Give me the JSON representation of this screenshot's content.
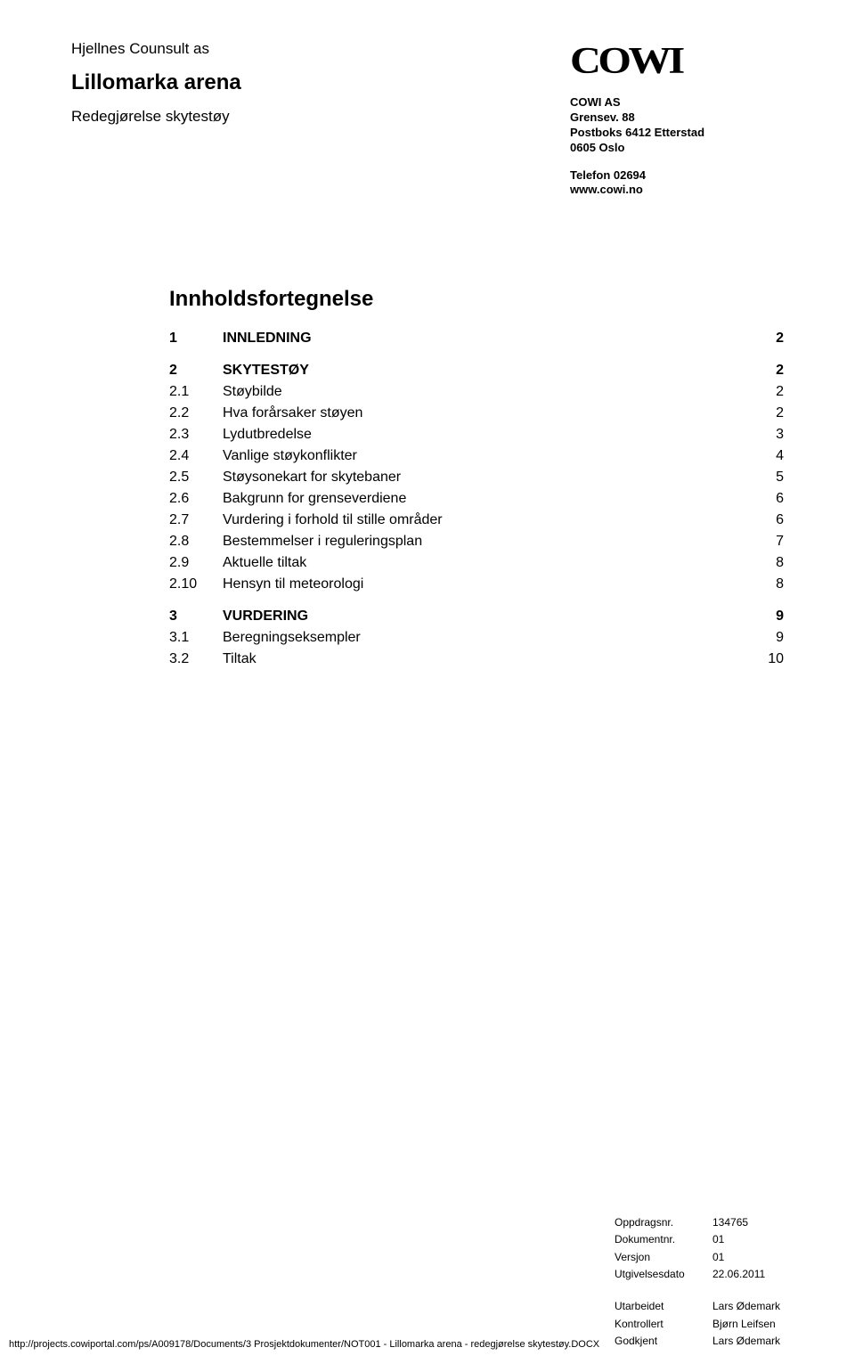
{
  "header": {
    "company": "Hjellnes Counsult as",
    "project": "Lillomarka arena",
    "subtitle": "Redegjørelse skytestøy"
  },
  "logo": {
    "text": "COWI"
  },
  "address": {
    "name": "COWI AS",
    "street": "Grensev. 88",
    "postbox": "Postboks 6412 Etterstad",
    "city": "0605  Oslo",
    "phone": "Telefon 02694",
    "web": "www.cowi.no"
  },
  "toc": {
    "title": "Innholdsfortegnelse",
    "groups": [
      {
        "rows": [
          {
            "num": "1",
            "label": "INNLEDNING",
            "page": "2",
            "bold": true
          }
        ]
      },
      {
        "rows": [
          {
            "num": "2",
            "label": "SKYTESTØY",
            "page": "2",
            "bold": true
          },
          {
            "num": "2.1",
            "label": "Støybilde",
            "page": "2",
            "bold": false
          },
          {
            "num": "2.2",
            "label": "Hva forårsaker støyen",
            "page": "2",
            "bold": false
          },
          {
            "num": "2.3",
            "label": "Lydutbredelse",
            "page": "3",
            "bold": false
          },
          {
            "num": "2.4",
            "label": "Vanlige støykonflikter",
            "page": "4",
            "bold": false
          },
          {
            "num": "2.5",
            "label": "Støysonekart for skytebaner",
            "page": "5",
            "bold": false
          },
          {
            "num": "2.6",
            "label": "Bakgrunn for grenseverdiene",
            "page": "6",
            "bold": false
          },
          {
            "num": "2.7",
            "label": "Vurdering i forhold til stille områder",
            "page": "6",
            "bold": false
          },
          {
            "num": "2.8",
            "label": "Bestemmelser i reguleringsplan",
            "page": "7",
            "bold": false
          },
          {
            "num": "2.9",
            "label": "Aktuelle tiltak",
            "page": "8",
            "bold": false
          },
          {
            "num": "2.10",
            "label": "Hensyn til meteorologi",
            "page": "8",
            "bold": false
          }
        ]
      },
      {
        "rows": [
          {
            "num": "3",
            "label": "VURDERING",
            "page": "9",
            "bold": true
          },
          {
            "num": "3.1",
            "label": "Beregningseksempler",
            "page": "9",
            "bold": false
          },
          {
            "num": "3.2",
            "label": "Tiltak",
            "page": "10",
            "bold": false
          }
        ]
      }
    ]
  },
  "meta": {
    "rows": [
      {
        "key": "Oppdragsnr.",
        "val": "134765"
      },
      {
        "key": "Dokumentnr.",
        "val": "01"
      },
      {
        "key": "Versjon",
        "val": "01"
      },
      {
        "key": "Utgivelsesdato",
        "val": "22.06.2011"
      }
    ]
  },
  "footer": {
    "path": "http://projects.cowiportal.com/ps/A009178/Documents/3 Prosjektdokumenter/NOT001 - Lillomarka arena - redegjørelse skytestøy.DOCX",
    "rows": [
      {
        "key": "Utarbeidet",
        "val": "Lars Ødemark"
      },
      {
        "key": "Kontrollert",
        "val": "Bjørn Leifsen"
      },
      {
        "key": "Godkjent",
        "val": "Lars Ødemark"
      }
    ]
  }
}
